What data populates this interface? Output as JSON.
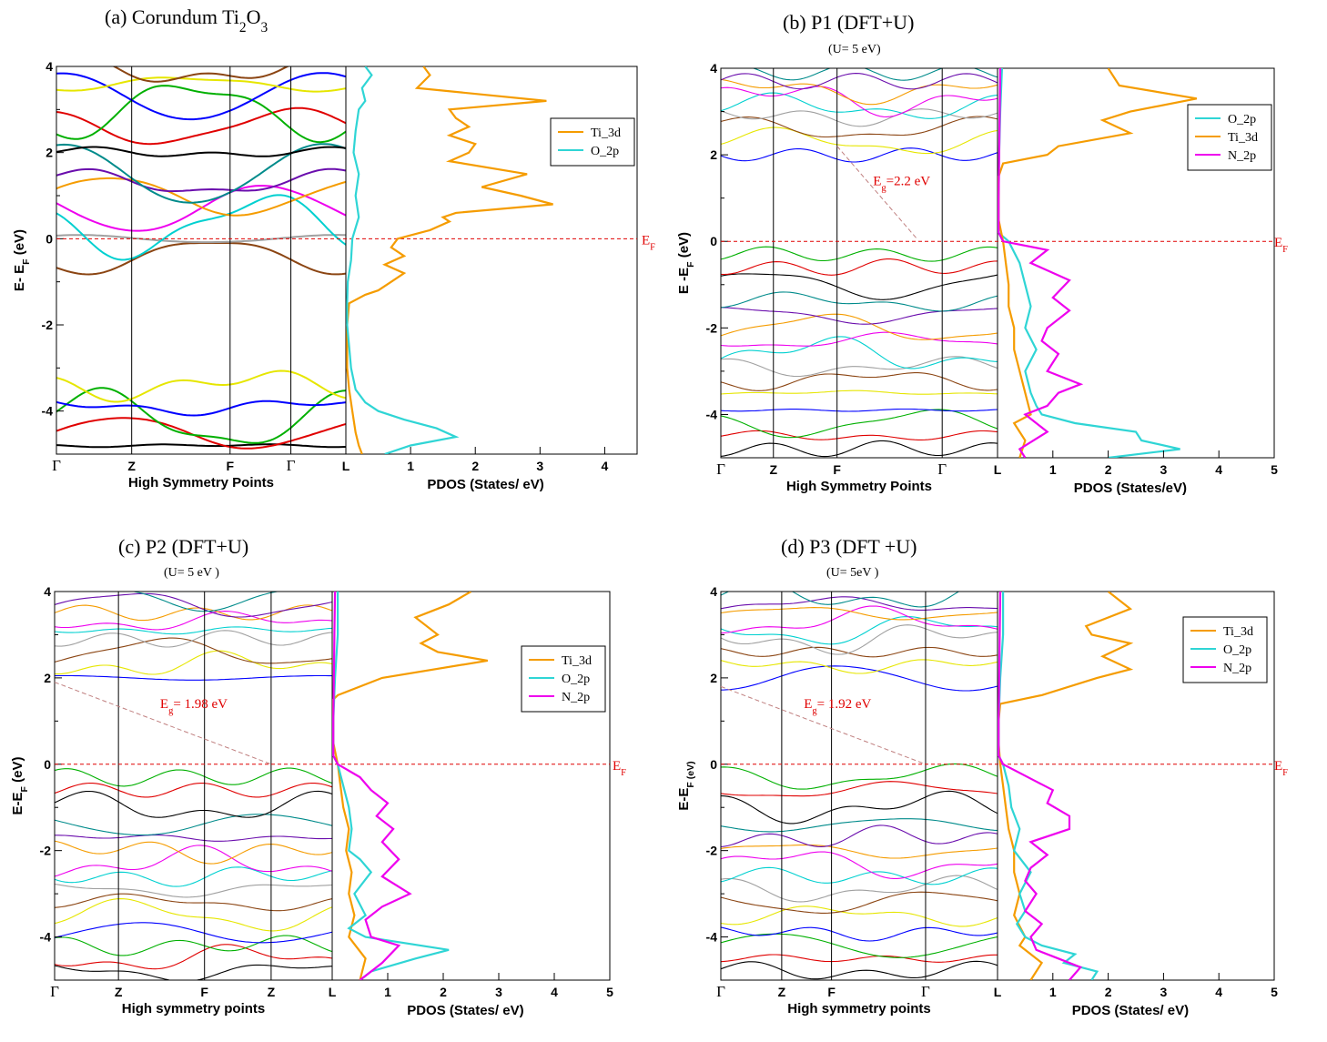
{
  "chart_data": [
    {
      "id": "a",
      "type": "line",
      "title": "(a) Corundum Ti",
      "title_sub1": "2",
      "title_mid": "O",
      "title_sub2": "3",
      "subtitle": "",
      "band": {
        "kpoints": [
          "Γ",
          "Z",
          "F",
          "Γ",
          "L"
        ],
        "kfrac": [
          0,
          0.26,
          0.6,
          0.81,
          1.0
        ],
        "ylim": [
          -5,
          4
        ],
        "yticks": [
          "4",
          "2",
          "0",
          "-2",
          "-4"
        ],
        "xlabel": "High Symmetry Points",
        "ylabel": "E- E",
        "ylabel_sub": "F",
        "ylabel_tail": "(eV)",
        "gap_label": "",
        "gap_sub": "",
        "gap_tail": "",
        "gap_from": null,
        "gap_to": null
      },
      "pdos": {
        "xlim": [
          0,
          4.5
        ],
        "xticks": [
          "L",
          "1",
          "2",
          "3",
          "4"
        ],
        "xlabel": "PDOS (States/ eV)",
        "ef_label": "E",
        "ef_sub": "F",
        "legend": [
          "Ti_3d",
          "O_2p"
        ],
        "series": [
          {
            "name": "Ti_3d",
            "color": "#f59c00",
            "energies": [
              -5,
              -4.8,
              -4.5,
              -4.0,
              -3.5,
              -3.0,
              -2.5,
              -2.0,
              -1.5,
              -1.3,
              -1.2,
              -1.0,
              -0.8,
              -0.6,
              -0.4,
              -0.2,
              0.0,
              0.2,
              0.4,
              0.5,
              0.6,
              0.8,
              1.0,
              1.2,
              1.5,
              1.8,
              2.0,
              2.2,
              2.4,
              2.6,
              2.8,
              3.0,
              3.2,
              3.5,
              3.8,
              4.0
            ],
            "values": [
              0.25,
              0.2,
              0.15,
              0.1,
              0.05,
              0.02,
              0.02,
              0.02,
              0.05,
              0.3,
              0.5,
              0.7,
              0.9,
              0.6,
              0.9,
              0.7,
              0.8,
              1.3,
              1.6,
              1.5,
              1.7,
              3.2,
              2.7,
              2.1,
              2.8,
              1.6,
              1.9,
              2.0,
              1.6,
              1.9,
              1.7,
              1.6,
              3.1,
              1.1,
              1.3,
              1.2
            ]
          },
          {
            "name": "O_2p",
            "color": "#2fd5d5",
            "energies": [
              -5,
              -4.8,
              -4.6,
              -4.4,
              -4.2,
              -4.0,
              -3.8,
              -3.5,
              -3.0,
              -2.5,
              -2.0,
              -1.5,
              -1.0,
              -0.5,
              0.0,
              0.5,
              1.0,
              1.5,
              2.0,
              2.5,
              3.0,
              3.2,
              3.5,
              3.8,
              4.0
            ],
            "values": [
              0.6,
              1.0,
              1.7,
              1.4,
              0.9,
              0.5,
              0.3,
              0.15,
              0.08,
              0.05,
              0.02,
              0.02,
              0.03,
              0.08,
              0.1,
              0.2,
              0.15,
              0.2,
              0.12,
              0.15,
              0.2,
              0.3,
              0.25,
              0.4,
              0.3
            ]
          }
        ]
      }
    },
    {
      "id": "b",
      "type": "line",
      "title": "(b) P1 (DFT+U)",
      "title_sub1": "",
      "title_mid": "",
      "title_sub2": "",
      "subtitle": "(U= 5 eV)",
      "band": {
        "kpoints": [
          "Γ",
          "Z",
          "F",
          "Γ",
          "L"
        ],
        "kfrac": [
          0,
          0.19,
          0.42,
          0.8,
          1.0
        ],
        "ylim": [
          -5,
          4
        ],
        "yticks": [
          "4",
          "2",
          "0",
          "-2",
          "-4"
        ],
        "xlabel": "High Symmetry Points",
        "ylabel": "E -E",
        "ylabel_sub": "F",
        "ylabel_tail": "(eV)",
        "gap_label": "E",
        "gap_sub": "g",
        "gap_tail": "=2.2 eV",
        "gap_from": [
          0.42,
          2.2
        ],
        "gap_to": [
          0.71,
          0.05
        ]
      },
      "pdos": {
        "xlim": [
          0,
          5
        ],
        "xticks": [
          "L",
          "1",
          "2",
          "3",
          "4",
          "5"
        ],
        "xlabel": "PDOS (States/eV)",
        "ef_label": "E",
        "ef_sub": "F",
        "legend": [
          "O_2p",
          "Ti_3d",
          "N_2p"
        ],
        "series": [
          {
            "name": "O_2p",
            "color": "#2fd5d5",
            "energies": [
              -5,
              -4.8,
              -4.6,
              -4.4,
              -4.2,
              -4.0,
              -3.8,
              -3.5,
              -3.0,
              -2.5,
              -2.0,
              -1.5,
              -1.0,
              -0.5,
              0.0,
              0.2,
              1.0,
              2.0,
              3.0,
              4.0
            ],
            "values": [
              2.0,
              3.3,
              2.6,
              2.5,
              1.4,
              0.8,
              0.7,
              0.6,
              0.5,
              0.7,
              0.5,
              0.6,
              0.5,
              0.4,
              0.2,
              0.02,
              0.02,
              0.03,
              0.05,
              0.08
            ]
          },
          {
            "name": "Ti_3d",
            "color": "#f59c00",
            "energies": [
              -5,
              -4.6,
              -4.2,
              -4.0,
              -3.5,
              -3.0,
              -2.5,
              -2.0,
              -1.5,
              -1.0,
              -0.5,
              0.0,
              0.5,
              1.0,
              1.5,
              1.8,
              2.0,
              2.2,
              2.5,
              2.8,
              3.0,
              3.3,
              3.6,
              4.0
            ],
            "values": [
              0.4,
              0.5,
              0.3,
              0.6,
              0.5,
              0.4,
              0.3,
              0.3,
              0.2,
              0.2,
              0.15,
              0.1,
              0.02,
              0.02,
              0.02,
              0.1,
              0.9,
              1.1,
              2.4,
              1.9,
              2.4,
              3.6,
              2.2,
              2.0
            ]
          },
          {
            "name": "N_2p",
            "color": "#ee00ee",
            "energies": [
              -5,
              -4.8,
              -4.4,
              -4.0,
              -3.8,
              -3.5,
              -3.3,
              -3.0,
              -2.6,
              -2.3,
              -2.0,
              -1.6,
              -1.3,
              -0.9,
              -0.5,
              -0.2,
              0.0,
              0.2,
              1.0,
              2.0,
              3.0,
              4.0
            ],
            "values": [
              0.5,
              0.4,
              0.9,
              0.5,
              0.9,
              1.1,
              1.5,
              0.9,
              1.1,
              0.8,
              0.9,
              1.3,
              1.0,
              1.3,
              0.6,
              0.9,
              0.1,
              0.02,
              0.02,
              0.03,
              0.04,
              0.05
            ]
          }
        ]
      }
    },
    {
      "id": "c",
      "type": "line",
      "title": "(c) P2 (DFT+U)",
      "title_sub1": "",
      "title_mid": "",
      "title_sub2": "",
      "subtitle": "(U= 5 eV )",
      "band": {
        "kpoints": [
          "Γ",
          "Z",
          "F",
          "Z",
          "L"
        ],
        "kfrac": [
          0,
          0.23,
          0.54,
          0.78,
          1.0
        ],
        "ylim": [
          -5,
          4
        ],
        "yticks": [
          "4",
          "2",
          "0",
          "-2",
          "-4"
        ],
        "xlabel": "High symmetry points",
        "ylabel": "E-E",
        "ylabel_sub": "F",
        "ylabel_tail": "(eV)",
        "gap_label": "E",
        "gap_sub": "g",
        "gap_tail": "= 1.98 eV",
        "gap_from": [
          0,
          1.9
        ],
        "gap_to": [
          0.78,
          0.0
        ]
      },
      "pdos": {
        "xlim": [
          0,
          5
        ],
        "xticks": [
          "L",
          "1",
          "2",
          "3",
          "4",
          "5"
        ],
        "xlabel": "PDOS (States/ eV)",
        "ef_label": "E",
        "ef_sub": "F",
        "legend": [
          "Ti_3d",
          "O_2p",
          "N_2p"
        ],
        "series": [
          {
            "name": "Ti_3d",
            "color": "#f59c00",
            "energies": [
              -5,
              -4.5,
              -4.0,
              -3.5,
              -3.0,
              -2.5,
              -2.0,
              -1.5,
              -1.0,
              -0.5,
              0.0,
              0.5,
              1.0,
              1.5,
              1.6,
              2.0,
              2.4,
              2.6,
              2.8,
              3.0,
              3.4,
              3.7,
              4.0
            ],
            "values": [
              0.5,
              0.6,
              0.3,
              0.4,
              0.3,
              0.35,
              0.25,
              0.3,
              0.2,
              0.15,
              0.1,
              0.02,
              0.02,
              0.02,
              0.1,
              0.9,
              2.8,
              1.9,
              1.6,
              1.9,
              1.5,
              2.1,
              2.5
            ]
          },
          {
            "name": "O_2p",
            "color": "#2fd5d5",
            "energies": [
              -5,
              -4.8,
              -4.5,
              -4.3,
              -4.0,
              -3.8,
              -3.5,
              -3.0,
              -2.5,
              -2.2,
              -2.0,
              -1.5,
              -1.0,
              -0.5,
              0.0,
              0.2,
              1.0,
              2.0,
              3.0,
              4.0
            ],
            "values": [
              0.5,
              0.7,
              1.5,
              2.1,
              0.6,
              0.3,
              0.6,
              0.4,
              0.7,
              0.5,
              0.3,
              0.35,
              0.3,
              0.2,
              0.1,
              0.02,
              0.02,
              0.05,
              0.1,
              0.1
            ]
          },
          {
            "name": "N_2p",
            "color": "#ee00ee",
            "energies": [
              -5,
              -4.6,
              -4.2,
              -4.0,
              -3.6,
              -3.3,
              -3.0,
              -2.6,
              -2.2,
              -1.8,
              -1.5,
              -1.2,
              -0.9,
              -0.6,
              -0.3,
              0.0,
              0.2,
              1.0,
              2.0,
              3.0,
              4.0
            ],
            "values": [
              0.5,
              0.9,
              1.2,
              0.7,
              0.6,
              0.9,
              1.4,
              0.9,
              1.2,
              0.9,
              1.1,
              0.8,
              1.0,
              0.7,
              0.5,
              0.1,
              0.02,
              0.02,
              0.03,
              0.04,
              0.05
            ]
          }
        ]
      }
    },
    {
      "id": "d",
      "type": "line",
      "title": "(d) P3 (DFT +U)",
      "title_sub1": "",
      "title_mid": "",
      "title_sub2": "",
      "subtitle": "(U= 5eV )",
      "band": {
        "kpoints": [
          "Γ",
          "Z",
          "F",
          "Γ",
          "L"
        ],
        "kfrac": [
          0,
          0.22,
          0.4,
          0.74,
          1.0
        ],
        "ylim": [
          -5,
          4
        ],
        "yticks": [
          "4",
          "2",
          "0",
          "-2",
          "-4"
        ],
        "xlabel": "High symmetry points",
        "ylabel": "E-E",
        "ylabel_sub": "F (eV)",
        "ylabel_tail": "",
        "gap_label": "E",
        "gap_sub": "g",
        "gap_tail": "= 1.92 eV",
        "gap_from": [
          0,
          1.8
        ],
        "gap_to": [
          0.74,
          0.0
        ]
      },
      "pdos": {
        "xlim": [
          0,
          5
        ],
        "xticks": [
          "L",
          "1",
          "2",
          "3",
          "4",
          "5"
        ],
        "xlabel": "PDOS (States/ eV)",
        "ef_label": "E",
        "ef_sub": "F",
        "legend": [
          "Ti_3d",
          "O_2p",
          "N_2p"
        ],
        "series": [
          {
            "name": "Ti_3d",
            "color": "#f59c00",
            "energies": [
              -5,
              -4.6,
              -4.2,
              -4.0,
              -3.5,
              -3.0,
              -2.5,
              -2.0,
              -1.5,
              -1.0,
              -0.5,
              0.0,
              0.5,
              1.0,
              1.4,
              1.6,
              2.0,
              2.2,
              2.5,
              2.8,
              3.0,
              3.2,
              3.6,
              4.0
            ],
            "values": [
              0.6,
              0.8,
              0.4,
              0.5,
              0.3,
              0.4,
              0.3,
              0.3,
              0.2,
              0.15,
              0.1,
              0.05,
              0.02,
              0.02,
              0.05,
              0.8,
              1.8,
              2.4,
              1.9,
              2.4,
              1.7,
              1.6,
              2.4,
              2.0
            ]
          },
          {
            "name": "O_2p",
            "color": "#2fd5d5",
            "energies": [
              -5,
              -4.8,
              -4.6,
              -4.4,
              -4.2,
              -4.0,
              -3.7,
              -3.4,
              -3.0,
              -2.5,
              -2.0,
              -1.5,
              -1.0,
              -0.5,
              0.0,
              0.2,
              1.0,
              2.0,
              3.0,
              4.0
            ],
            "values": [
              1.7,
              1.8,
              1.2,
              1.4,
              0.8,
              0.5,
              0.35,
              0.5,
              0.4,
              0.6,
              0.3,
              0.4,
              0.25,
              0.2,
              0.1,
              0.02,
              0.02,
              0.05,
              0.1,
              0.1
            ]
          },
          {
            "name": "N_2p",
            "color": "#ee00ee",
            "energies": [
              -5,
              -4.7,
              -4.5,
              -4.3,
              -4.0,
              -3.7,
              -3.4,
              -3.0,
              -2.7,
              -2.4,
              -2.1,
              -1.8,
              -1.5,
              -1.2,
              -0.9,
              -0.6,
              -0.4,
              0.0,
              0.2,
              1.0,
              2.0,
              3.0,
              4.0
            ],
            "values": [
              1.3,
              1.5,
              1.1,
              0.7,
              0.6,
              0.8,
              0.5,
              0.7,
              0.5,
              0.6,
              0.9,
              0.6,
              1.3,
              1.3,
              0.9,
              1.0,
              0.7,
              0.1,
              0.02,
              0.02,
              0.03,
              0.04,
              0.05
            ]
          }
        ]
      }
    }
  ],
  "line_colors": [
    "#000000",
    "#e00000",
    "#00b000",
    "#0000ff",
    "#e6e600",
    "#8b4513",
    "#a0a0a0",
    "#00d0d0",
    "#ee00ee",
    "#f59c00",
    "#6a0dad",
    "#008b8b"
  ],
  "ef_line_color": "#e00000",
  "gap_line_color": "#c08080"
}
